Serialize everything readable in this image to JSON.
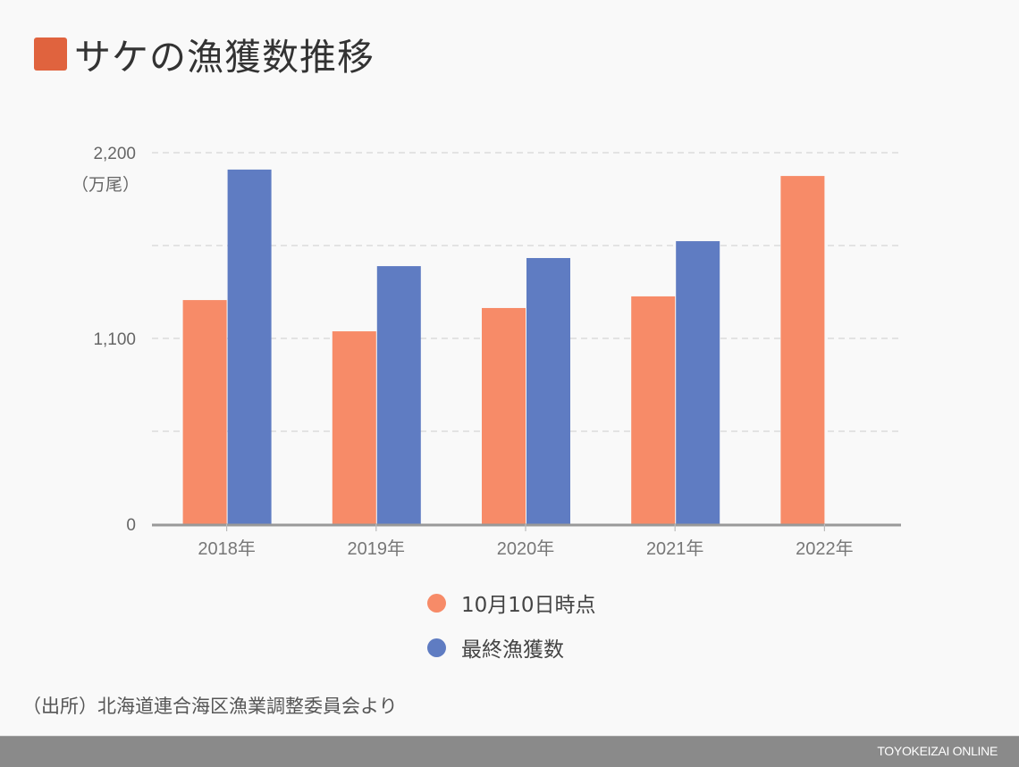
{
  "title": "サケの漁獲数推移",
  "unit_label": "（万尾）",
  "source": "（出所）北海道連合海区漁業調整委員会より",
  "brand": "TOYOKEIZAI ONLINE",
  "colors": {
    "title_mark": "#e0633e",
    "series_1": "#f78b68",
    "series_2": "#5f7cc2",
    "axis": "#999999",
    "grid": "#d6d6d6"
  },
  "chart_data": {
    "type": "bar",
    "title": "サケの漁獲数推移",
    "xlabel": "",
    "ylabel": "（万尾）",
    "categories": [
      "2018年",
      "2019年",
      "2020年",
      "2021年",
      "2022年"
    ],
    "series": [
      {
        "name": "10月10日時点",
        "values": [
          1327,
          1142,
          1280,
          1349,
          2062
        ]
      },
      {
        "name": "最終漁獲数",
        "values": [
          2100,
          1528,
          1576,
          1676,
          null
        ]
      }
    ],
    "ylim": [
      0,
      2200
    ],
    "gridlines": [
      0,
      550,
      1100,
      1650,
      2200
    ],
    "yticks": [
      {
        "value": 0,
        "label": "0"
      },
      {
        "value": 1100,
        "label": "1,100"
      },
      {
        "value": 2200,
        "label": "2,200"
      }
    ],
    "grid": true,
    "legend_position": "bottom"
  }
}
